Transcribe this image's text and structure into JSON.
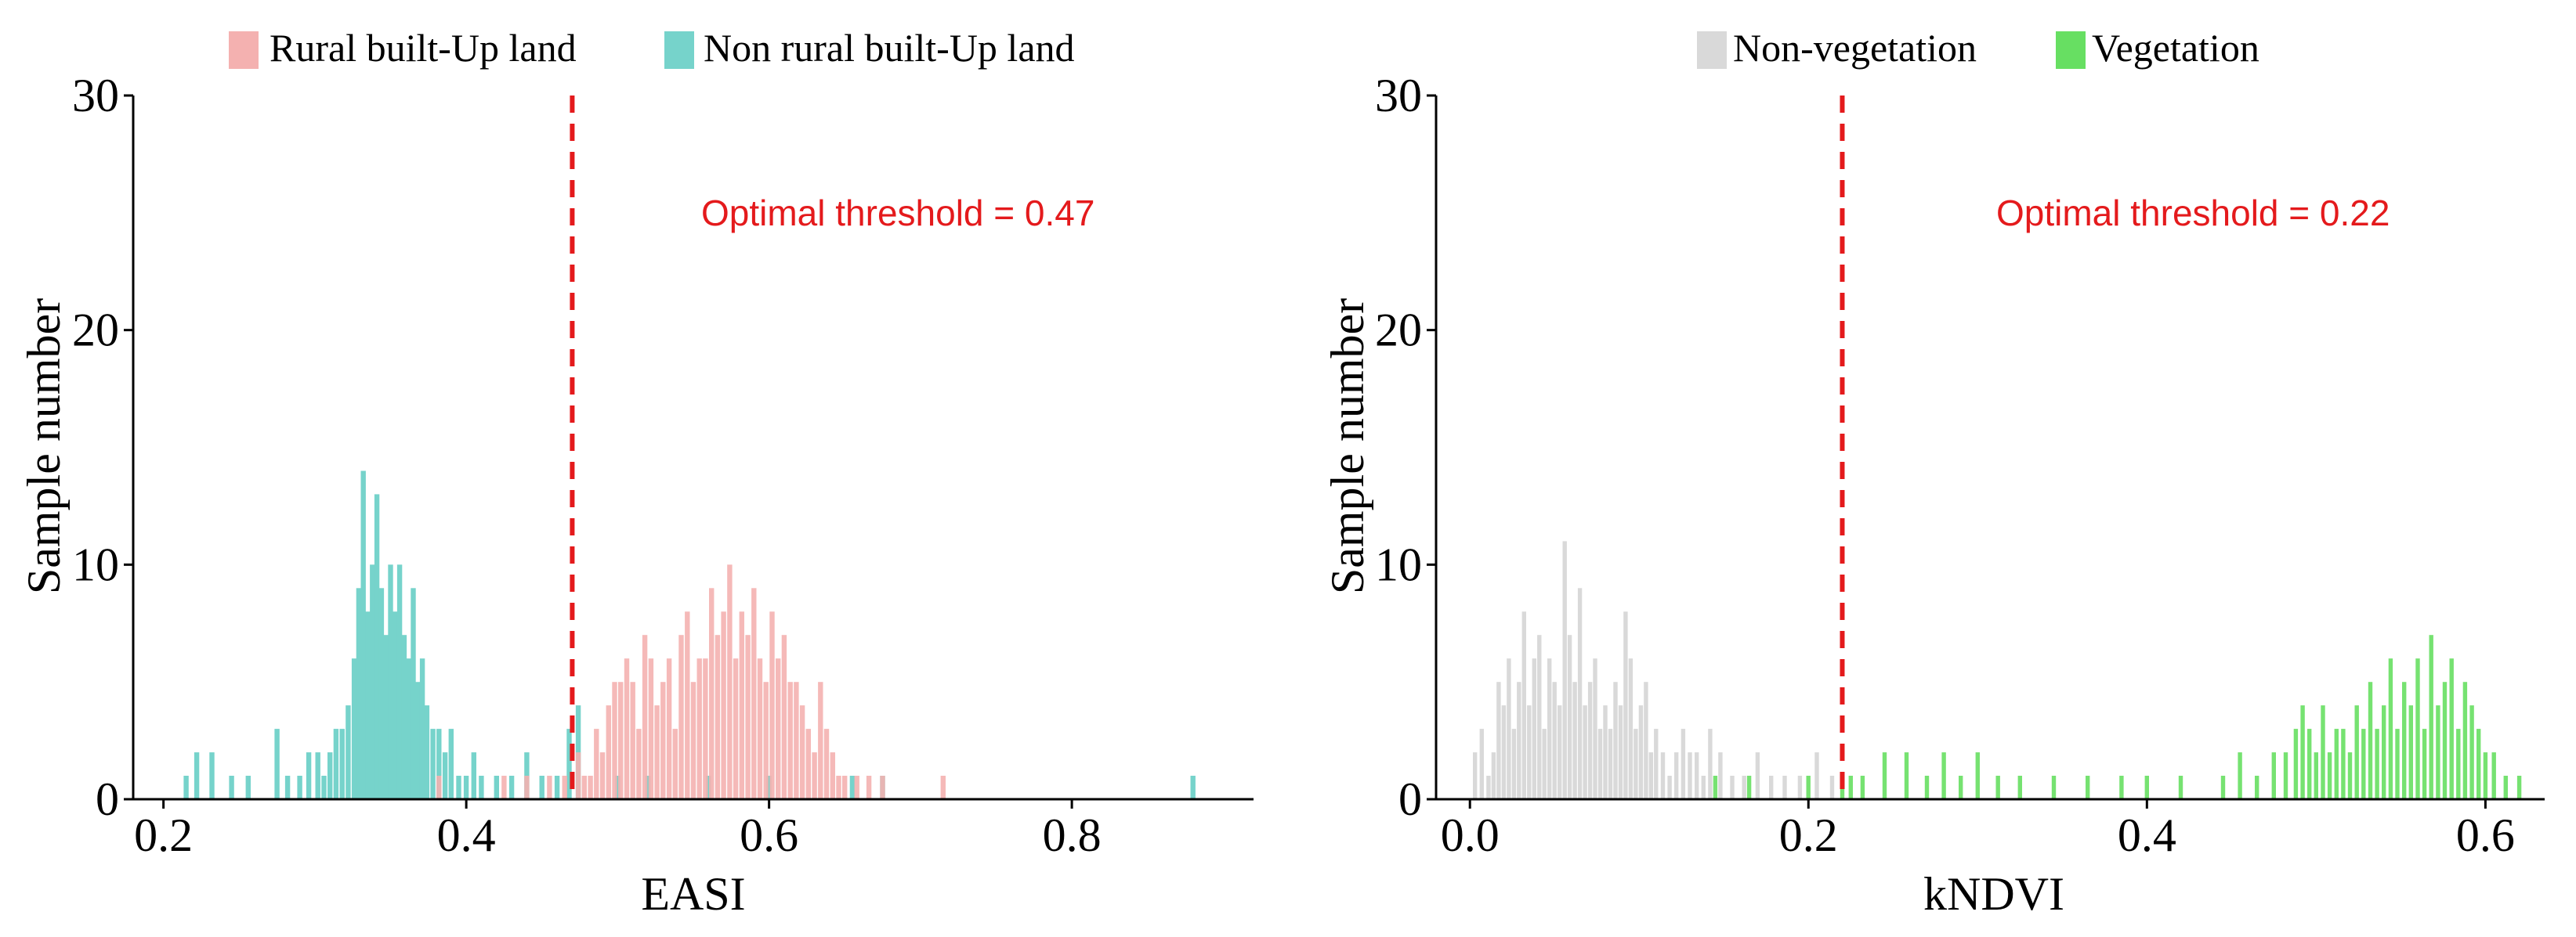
{
  "chart_data": [
    {
      "type": "bar",
      "subtype": "histogram",
      "xlabel": "EASI",
      "ylabel": "Sample number",
      "xlim": [
        0.18,
        0.92
      ],
      "ylim": [
        0,
        30
      ],
      "xticks": [
        0.2,
        0.4,
        0.6,
        0.8
      ],
      "xtick_labels": [
        "0.2",
        "0.4",
        "0.6",
        "0.8"
      ],
      "yticks": [
        0,
        10,
        20,
        30
      ],
      "ytick_labels": [
        "0",
        "10",
        "20",
        "30"
      ],
      "bin_width": 0.0037,
      "legend_position": "top",
      "grid": false,
      "threshold": {
        "value": 0.47,
        "label": "Optimal threshold = 0.47",
        "color": "#e41a1c"
      },
      "series": [
        {
          "name": "Non rural built-Up land",
          "color": "#76d3cb",
          "x": [
            0.215,
            0.222,
            0.232,
            0.245,
            0.256,
            0.275,
            0.282,
            0.29,
            0.296,
            0.302,
            0.306,
            0.31,
            0.314,
            0.318,
            0.322,
            0.326,
            0.329,
            0.332,
            0.335,
            0.338,
            0.341,
            0.344,
            0.347,
            0.35,
            0.353,
            0.356,
            0.359,
            0.362,
            0.365,
            0.368,
            0.371,
            0.374,
            0.378,
            0.382,
            0.386,
            0.39,
            0.395,
            0.4,
            0.405,
            0.41,
            0.42,
            0.43,
            0.44,
            0.45,
            0.46,
            0.468,
            0.474,
            0.5,
            0.52,
            0.56,
            0.6,
            0.655,
            0.675,
            0.88
          ],
          "values": [
            1,
            2,
            2,
            1,
            1,
            3,
            1,
            1,
            2,
            2,
            1,
            2,
            3,
            3,
            4,
            6,
            9,
            14,
            8,
            10,
            13,
            9,
            7,
            10,
            8,
            10,
            7,
            6,
            9,
            5,
            6,
            4,
            3,
            3,
            2,
            3,
            1,
            1,
            2,
            1,
            1,
            1,
            2,
            1,
            1,
            3,
            4,
            1,
            1,
            1,
            1,
            1,
            1,
            1
          ]
        },
        {
          "name": "Rural built-Up land",
          "color": "#f4b1b0",
          "x": [
            0.382,
            0.425,
            0.44,
            0.455,
            0.465,
            0.474,
            0.478,
            0.482,
            0.486,
            0.49,
            0.494,
            0.498,
            0.502,
            0.506,
            0.51,
            0.514,
            0.518,
            0.522,
            0.526,
            0.53,
            0.534,
            0.538,
            0.542,
            0.546,
            0.55,
            0.554,
            0.558,
            0.562,
            0.566,
            0.57,
            0.574,
            0.578,
            0.582,
            0.586,
            0.59,
            0.594,
            0.598,
            0.602,
            0.606,
            0.61,
            0.614,
            0.618,
            0.622,
            0.626,
            0.63,
            0.634,
            0.638,
            0.642,
            0.646,
            0.65,
            0.658,
            0.666,
            0.675,
            0.715
          ],
          "values": [
            1,
            1,
            1,
            1,
            1,
            2,
            1,
            1,
            3,
            2,
            4,
            5,
            5,
            6,
            5,
            3,
            7,
            6,
            4,
            5,
            6,
            3,
            7,
            8,
            5,
            6,
            6,
            9,
            7,
            8,
            10,
            6,
            8,
            7,
            9,
            6,
            5,
            8,
            6,
            7,
            5,
            5,
            4,
            3,
            2,
            5,
            3,
            2,
            1,
            1,
            1,
            1,
            1,
            1
          ]
        }
      ]
    },
    {
      "type": "bar",
      "subtype": "histogram",
      "xlabel": "kNDVI",
      "ylabel": "Sample number",
      "xlim": [
        -0.02,
        0.635
      ],
      "ylim": [
        0,
        30
      ],
      "xticks": [
        0.0,
        0.2,
        0.4,
        0.6
      ],
      "xtick_labels": [
        "0.0",
        "0.2",
        "0.4",
        "0.6"
      ],
      "yticks": [
        0,
        10,
        20,
        30
      ],
      "ytick_labels": [
        "0",
        "10",
        "20",
        "30"
      ],
      "bin_width": 0.0028,
      "legend_position": "top",
      "grid": false,
      "threshold": {
        "value": 0.22,
        "label": "Optimal threshold = 0.22",
        "color": "#e41a1c"
      },
      "series": [
        {
          "name": "Non-vegetation",
          "color": "#d9d9d9",
          "x": [
            0.003,
            0.007,
            0.011,
            0.014,
            0.017,
            0.02,
            0.023,
            0.026,
            0.029,
            0.032,
            0.035,
            0.038,
            0.041,
            0.044,
            0.047,
            0.05,
            0.053,
            0.056,
            0.059,
            0.062,
            0.065,
            0.068,
            0.071,
            0.074,
            0.077,
            0.08,
            0.083,
            0.086,
            0.089,
            0.092,
            0.095,
            0.098,
            0.101,
            0.104,
            0.107,
            0.11,
            0.114,
            0.118,
            0.122,
            0.126,
            0.13,
            0.134,
            0.138,
            0.142,
            0.148,
            0.155,
            0.162,
            0.17,
            0.178,
            0.186,
            0.195,
            0.205,
            0.214
          ],
          "values": [
            2,
            3,
            1,
            2,
            5,
            4,
            6,
            3,
            5,
            8,
            4,
            6,
            7,
            3,
            6,
            5,
            4,
            11,
            7,
            5,
            9,
            4,
            5,
            6,
            3,
            4,
            3,
            5,
            4,
            8,
            6,
            3,
            4,
            5,
            2,
            3,
            2,
            1,
            2,
            3,
            2,
            2,
            1,
            3,
            2,
            1,
            1,
            2,
            1,
            1,
            1,
            2,
            1
          ]
        },
        {
          "name": "Vegetation",
          "color": "#67df62",
          "x": [
            0.145,
            0.165,
            0.2,
            0.22,
            0.225,
            0.232,
            0.245,
            0.258,
            0.27,
            0.28,
            0.29,
            0.3,
            0.312,
            0.325,
            0.345,
            0.365,
            0.385,
            0.4,
            0.42,
            0.445,
            0.455,
            0.465,
            0.475,
            0.482,
            0.488,
            0.492,
            0.496,
            0.5,
            0.504,
            0.508,
            0.512,
            0.516,
            0.52,
            0.524,
            0.528,
            0.532,
            0.536,
            0.54,
            0.544,
            0.548,
            0.552,
            0.556,
            0.56,
            0.564,
            0.568,
            0.572,
            0.576,
            0.58,
            0.584,
            0.588,
            0.592,
            0.596,
            0.6,
            0.605,
            0.612,
            0.62
          ],
          "values": [
            1,
            1,
            1,
            1,
            1,
            1,
            2,
            2,
            1,
            2,
            1,
            2,
            1,
            1,
            1,
            1,
            1,
            1,
            1,
            1,
            2,
            1,
            2,
            2,
            3,
            4,
            3,
            2,
            4,
            2,
            3,
            3,
            2,
            4,
            3,
            5,
            3,
            4,
            6,
            3,
            5,
            4,
            6,
            3,
            7,
            4,
            5,
            6,
            3,
            5,
            4,
            3,
            2,
            2,
            1,
            1
          ]
        }
      ]
    }
  ]
}
